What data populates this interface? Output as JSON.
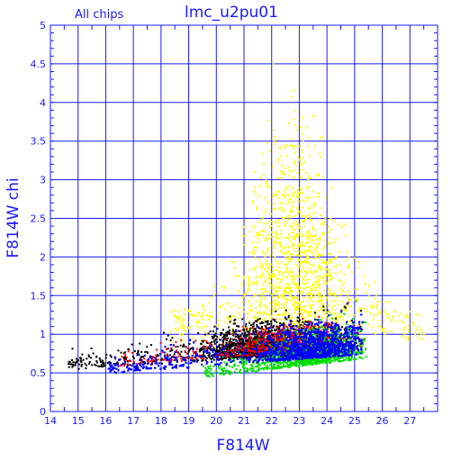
{
  "chart_data": {
    "type": "scatter",
    "title": "lmc_u2pu01",
    "subtitle": "All chips",
    "xlabel": "F814W",
    "ylabel": "F814W chi",
    "xlim": [
      14,
      28
    ],
    "ylim": [
      0,
      5
    ],
    "xticks": [
      "14",
      "15",
      "16",
      "17",
      "18",
      "19",
      "20",
      "21",
      "22",
      "23",
      "24",
      "25",
      "26",
      "27"
    ],
    "yticks": [
      "0",
      "0.5",
      "1",
      "1.5",
      "2",
      "2.5",
      "3",
      "3.5",
      "4",
      "4.5",
      "5"
    ],
    "grid": true,
    "colors": {
      "axis": "#1a1aff",
      "grid": "#1a1aff",
      "black": "#000000",
      "red": "#ff0000",
      "green": "#00dd00",
      "blue": "#0000ff",
      "yellow": "#ffff00"
    },
    "point_groups": [
      {
        "color": "yellow",
        "count": 1400,
        "x_range": [
          18.3,
          27.5
        ],
        "peak_x": 22.8,
        "chi_base": 0.9,
        "chi_spread": 2.6
      },
      {
        "color": "black",
        "count": 1700,
        "x_range": [
          14.6,
          25.3
        ],
        "peak_x": 21.5,
        "chi_base": 0.55,
        "chi_spread": 0.9
      },
      {
        "color": "red",
        "count": 900,
        "x_range": [
          16.5,
          25.3
        ],
        "peak_x": 22.5,
        "chi_base": 0.6,
        "chi_spread": 0.7
      },
      {
        "color": "green",
        "count": 1500,
        "x_range": [
          19.5,
          25.4
        ],
        "peak_x": 23.5,
        "chi_base": 0.45,
        "chi_spread": 0.9
      },
      {
        "color": "blue",
        "count": 4200,
        "x_range": [
          16.0,
          25.3
        ],
        "peak_x": 23.5,
        "chi_base": 0.5,
        "chi_spread": 0.8
      }
    ]
  }
}
